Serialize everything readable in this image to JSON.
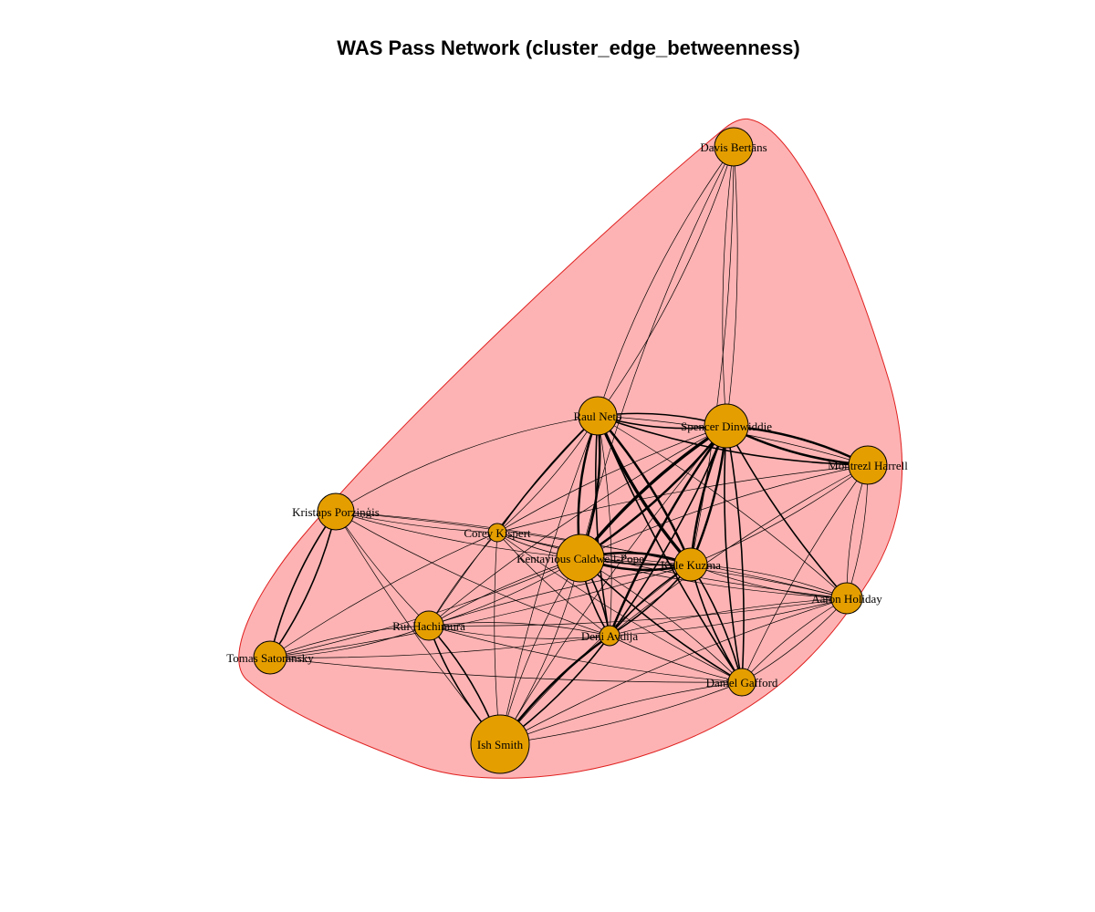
{
  "title": "WAS Pass Network (cluster_edge_betweenness)",
  "colors": {
    "background": "#ffffff",
    "cluster_fill": "#fdb3b3",
    "cluster_stroke": "#e02020",
    "node_fill": "#e59e00",
    "node_stroke": "#000000",
    "edge": "#000000"
  },
  "nodes": [
    {
      "id": "bertans",
      "label": "Davis Bertāns"
    },
    {
      "id": "neto",
      "label": "Raul Neto"
    },
    {
      "id": "dinwiddie",
      "label": "Spencer Dinwiddie"
    },
    {
      "id": "harrell",
      "label": "Montrezl Harrell"
    },
    {
      "id": "porzingis",
      "label": "Kristaps Porziņģis"
    },
    {
      "id": "kispert",
      "label": "Corey Kispert"
    },
    {
      "id": "kcp",
      "label": "Kentavious Caldwell-Pope"
    },
    {
      "id": "kuzma",
      "label": "Kyle Kuzma"
    },
    {
      "id": "holiday",
      "label": "Aaron Holiday"
    },
    {
      "id": "hachimura",
      "label": "Rui Hachimura"
    },
    {
      "id": "avdija",
      "label": "Deni Avdija"
    },
    {
      "id": "satoransky",
      "label": "Tomas Satoransky"
    },
    {
      "id": "gafford",
      "label": "Daniel Gafford"
    },
    {
      "id": "smith",
      "label": "Ish Smith"
    }
  ],
  "edges": [
    {
      "a": "bertans",
      "b": "neto",
      "w": 1,
      "c": 0.08
    },
    {
      "a": "bertans",
      "b": "neto",
      "w": 1,
      "c": -0.08
    },
    {
      "a": "bertans",
      "b": "dinwiddie",
      "w": 1,
      "c": 0.05
    },
    {
      "a": "bertans",
      "b": "dinwiddie",
      "w": 1,
      "c": -0.05
    },
    {
      "a": "bertans",
      "b": "kcp",
      "w": 1,
      "c": 0.06
    },
    {
      "a": "bertans",
      "b": "kuzma",
      "w": 1,
      "c": -0.05
    },
    {
      "a": "neto",
      "b": "dinwiddie",
      "w": 2,
      "c": 0.1
    },
    {
      "a": "neto",
      "b": "dinwiddie",
      "w": 2,
      "c": -0.1
    },
    {
      "a": "neto",
      "b": "harrell",
      "w": 2,
      "c": 0.08
    },
    {
      "a": "neto",
      "b": "harrell",
      "w": 1,
      "c": -0.06
    },
    {
      "a": "neto",
      "b": "kcp",
      "w": 3,
      "c": 0.12
    },
    {
      "a": "neto",
      "b": "kcp",
      "w": 3,
      "c": -0.12
    },
    {
      "a": "neto",
      "b": "kuzma",
      "w": 4,
      "c": 0.08
    },
    {
      "a": "neto",
      "b": "kuzma",
      "w": 3,
      "c": -0.08
    },
    {
      "a": "neto",
      "b": "kispert",
      "w": 2,
      "c": 0.05
    },
    {
      "a": "neto",
      "b": "kispert",
      "w": 1,
      "c": -0.07
    },
    {
      "a": "neto",
      "b": "avdija",
      "w": 2,
      "c": 0.06
    },
    {
      "a": "neto",
      "b": "avdija",
      "w": 1,
      "c": -0.06
    },
    {
      "a": "neto",
      "b": "gafford",
      "w": 2,
      "c": 0.05
    },
    {
      "a": "neto",
      "b": "porzingis",
      "w": 1,
      "c": 0.1
    },
    {
      "a": "neto",
      "b": "hachimura",
      "w": 1,
      "c": 0.05
    },
    {
      "a": "neto",
      "b": "smith",
      "w": 1,
      "c": 0.04
    },
    {
      "a": "neto",
      "b": "holiday",
      "w": 1,
      "c": -0.05
    },
    {
      "a": "dinwiddie",
      "b": "harrell",
      "w": 3,
      "c": 0.1
    },
    {
      "a": "dinwiddie",
      "b": "harrell",
      "w": 3,
      "c": -0.1
    },
    {
      "a": "dinwiddie",
      "b": "kcp",
      "w": 4,
      "c": 0.08
    },
    {
      "a": "dinwiddie",
      "b": "kcp",
      "w": 3,
      "c": -0.08
    },
    {
      "a": "dinwiddie",
      "b": "kuzma",
      "w": 3,
      "c": 0.08
    },
    {
      "a": "dinwiddie",
      "b": "kuzma",
      "w": 3,
      "c": -0.08
    },
    {
      "a": "dinwiddie",
      "b": "kispert",
      "w": 1,
      "c": 0.05
    },
    {
      "a": "dinwiddie",
      "b": "avdija",
      "w": 3,
      "c": 0.06
    },
    {
      "a": "dinwiddie",
      "b": "avdija",
      "w": 2,
      "c": -0.06
    },
    {
      "a": "dinwiddie",
      "b": "gafford",
      "w": 2,
      "c": 0.06
    },
    {
      "a": "dinwiddie",
      "b": "gafford",
      "w": 2,
      "c": -0.06
    },
    {
      "a": "dinwiddie",
      "b": "holiday",
      "w": 2,
      "c": 0.06
    },
    {
      "a": "dinwiddie",
      "b": "hachimura",
      "w": 1,
      "c": 0.05
    },
    {
      "a": "dinwiddie",
      "b": "smith",
      "w": 1,
      "c": 0.04
    },
    {
      "a": "harrell",
      "b": "kcp",
      "w": 1,
      "c": 0.06
    },
    {
      "a": "harrell",
      "b": "kuzma",
      "w": 1,
      "c": -0.06
    },
    {
      "a": "harrell",
      "b": "avdija",
      "w": 1,
      "c": 0.05
    },
    {
      "a": "harrell",
      "b": "holiday",
      "w": 1,
      "c": 0.08
    },
    {
      "a": "harrell",
      "b": "holiday",
      "w": 1,
      "c": -0.08
    },
    {
      "a": "harrell",
      "b": "gafford",
      "w": 1,
      "c": 0.05
    },
    {
      "a": "harrell",
      "b": "kispert",
      "w": 1,
      "c": 0.04
    },
    {
      "a": "porzingis",
      "b": "satoransky",
      "w": 2,
      "c": 0.1
    },
    {
      "a": "porzingis",
      "b": "satoransky",
      "w": 2,
      "c": -0.1
    },
    {
      "a": "porzingis",
      "b": "kcp",
      "w": 1,
      "c": 0.05
    },
    {
      "a": "porzingis",
      "b": "kuzma",
      "w": 1,
      "c": -0.04
    },
    {
      "a": "porzingis",
      "b": "kispert",
      "w": 1,
      "c": 0.04
    },
    {
      "a": "porzingis",
      "b": "avdija",
      "w": 1,
      "c": 0.05
    },
    {
      "a": "porzingis",
      "b": "hachimura",
      "w": 1,
      "c": 0.05
    },
    {
      "a": "porzingis",
      "b": "smith",
      "w": 1,
      "c": 0.04
    },
    {
      "a": "porzingis",
      "b": "holiday",
      "w": 1,
      "c": -0.04
    },
    {
      "a": "satoransky",
      "b": "hachimura",
      "w": 1,
      "c": 0.08
    },
    {
      "a": "satoransky",
      "b": "hachimura",
      "w": 1,
      "c": -0.08
    },
    {
      "a": "satoransky",
      "b": "kcp",
      "w": 1,
      "c": 0.05
    },
    {
      "a": "satoransky",
      "b": "kuzma",
      "w": 1,
      "c": 0.04
    },
    {
      "a": "satoransky",
      "b": "avdija",
      "w": 1,
      "c": 0.04
    },
    {
      "a": "satoransky",
      "b": "kispert",
      "w": 1,
      "c": -0.05
    },
    {
      "a": "satoransky",
      "b": "gafford",
      "w": 1,
      "c": 0.03
    },
    {
      "a": "kispert",
      "b": "kcp",
      "w": 1,
      "c": 0.08
    },
    {
      "a": "kispert",
      "b": "kuzma",
      "w": 1,
      "c": 0.05
    },
    {
      "a": "kispert",
      "b": "hachimura",
      "w": 1,
      "c": 0.05
    },
    {
      "a": "kispert",
      "b": "avdija",
      "w": 1,
      "c": 0.05
    },
    {
      "a": "kispert",
      "b": "smith",
      "w": 1,
      "c": 0.04
    },
    {
      "a": "kispert",
      "b": "gafford",
      "w": 1,
      "c": 0.04
    },
    {
      "a": "kispert",
      "b": "holiday",
      "w": 1,
      "c": 0.04
    },
    {
      "a": "kcp",
      "b": "kuzma",
      "w": 3,
      "c": 0.15
    },
    {
      "a": "kcp",
      "b": "kuzma",
      "w": 3,
      "c": -0.15
    },
    {
      "a": "kcp",
      "b": "kuzma",
      "w": 2,
      "c": 0.05
    },
    {
      "a": "kcp",
      "b": "avdija",
      "w": 2,
      "c": 0.1
    },
    {
      "a": "kcp",
      "b": "avdija",
      "w": 2,
      "c": -0.1
    },
    {
      "a": "kcp",
      "b": "hachimura",
      "w": 1,
      "c": 0.06
    },
    {
      "a": "kcp",
      "b": "hachimura",
      "w": 1,
      "c": -0.06
    },
    {
      "a": "kcp",
      "b": "gafford",
      "w": 2,
      "c": 0.06
    },
    {
      "a": "kcp",
      "b": "gafford",
      "w": 1,
      "c": -0.06
    },
    {
      "a": "kcp",
      "b": "holiday",
      "w": 1,
      "c": 0.05
    },
    {
      "a": "kcp",
      "b": "holiday",
      "w": 1,
      "c": -0.05
    },
    {
      "a": "kcp",
      "b": "smith",
      "w": 1,
      "c": 0.08
    },
    {
      "a": "kcp",
      "b": "smith",
      "w": 1,
      "c": -0.08
    },
    {
      "a": "kuzma",
      "b": "avdija",
      "w": 2,
      "c": 0.08
    },
    {
      "a": "kuzma",
      "b": "avdija",
      "w": 2,
      "c": -0.08
    },
    {
      "a": "kuzma",
      "b": "gafford",
      "w": 2,
      "c": 0.08
    },
    {
      "a": "kuzma",
      "b": "gafford",
      "w": 2,
      "c": -0.08
    },
    {
      "a": "kuzma",
      "b": "holiday",
      "w": 1,
      "c": 0.08
    },
    {
      "a": "kuzma",
      "b": "holiday",
      "w": 1,
      "c": -0.08
    },
    {
      "a": "kuzma",
      "b": "hachimura",
      "w": 1,
      "c": 0.04
    },
    {
      "a": "kuzma",
      "b": "smith",
      "w": 1,
      "c": 0.06
    },
    {
      "a": "avdija",
      "b": "hachimura",
      "w": 1,
      "c": 0.08
    },
    {
      "a": "avdija",
      "b": "hachimura",
      "w": 1,
      "c": -0.08
    },
    {
      "a": "avdija",
      "b": "smith",
      "w": 3,
      "c": 0.08
    },
    {
      "a": "avdija",
      "b": "smith",
      "w": 2,
      "c": -0.08
    },
    {
      "a": "avdija",
      "b": "gafford",
      "w": 1,
      "c": 0.06
    },
    {
      "a": "avdija",
      "b": "holiday",
      "w": 1,
      "c": 0.05
    },
    {
      "a": "avdija",
      "b": "holiday",
      "w": 1,
      "c": -0.05
    },
    {
      "a": "hachimura",
      "b": "smith",
      "w": 2,
      "c": 0.1
    },
    {
      "a": "hachimura",
      "b": "smith",
      "w": 2,
      "c": -0.1
    },
    {
      "a": "hachimura",
      "b": "gafford",
      "w": 1,
      "c": 0.05
    },
    {
      "a": "hachimura",
      "b": "holiday",
      "w": 1,
      "c": 0.04
    },
    {
      "a": "gafford",
      "b": "holiday",
      "w": 1,
      "c": 0.08
    },
    {
      "a": "gafford",
      "b": "holiday",
      "w": 1,
      "c": -0.08
    },
    {
      "a": "gafford",
      "b": "smith",
      "w": 1,
      "c": 0.06
    },
    {
      "a": "gafford",
      "b": "smith",
      "w": 1,
      "c": -0.06
    },
    {
      "a": "holiday",
      "b": "smith",
      "w": 1,
      "c": 0.05
    }
  ]
}
